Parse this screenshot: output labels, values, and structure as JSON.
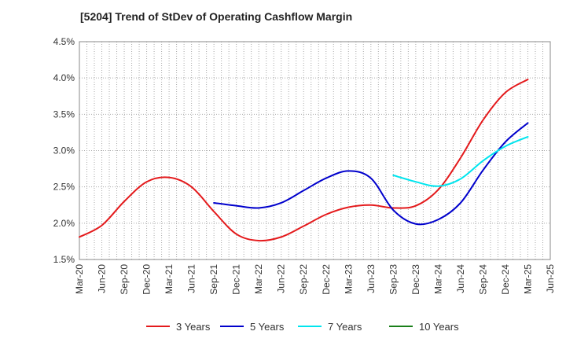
{
  "chart_data": {
    "type": "line",
    "title": "[5204]  Trend of StDev of Operating Cashflow Margin",
    "xlabel": "",
    "ylabel": "",
    "ylim": [
      1.5,
      4.5
    ],
    "yticks": [
      "1.5%",
      "2.0%",
      "2.5%",
      "3.0%",
      "3.5%",
      "4.0%",
      "4.5%"
    ],
    "categories": [
      "Mar-20",
      "Jun-20",
      "Sep-20",
      "Dec-20",
      "Mar-21",
      "Jun-21",
      "Sep-21",
      "Dec-21",
      "Mar-22",
      "Jun-22",
      "Sep-22",
      "Dec-22",
      "Mar-23",
      "Jun-23",
      "Sep-23",
      "Dec-23",
      "Mar-24",
      "Jun-24",
      "Sep-24",
      "Dec-24",
      "Mar-25",
      "Jun-25"
    ],
    "grid": true,
    "legend_position": "bottom",
    "series": [
      {
        "name": "3 Years",
        "color": "#e41a1c",
        "values": [
          1.81,
          1.97,
          2.3,
          2.57,
          2.63,
          2.5,
          2.16,
          1.85,
          1.76,
          1.81,
          1.96,
          2.12,
          2.22,
          2.25,
          2.21,
          2.24,
          2.46,
          2.9,
          3.42,
          3.8,
          3.98,
          null
        ]
      },
      {
        "name": "5 Years",
        "color": "#0000cc",
        "values": [
          null,
          null,
          null,
          null,
          null,
          null,
          2.28,
          2.24,
          2.21,
          2.28,
          2.45,
          2.62,
          2.72,
          2.62,
          2.18,
          1.99,
          2.05,
          2.28,
          2.73,
          3.12,
          3.38,
          null
        ]
      },
      {
        "name": "7 Years",
        "color": "#00e5ee",
        "values": [
          null,
          null,
          null,
          null,
          null,
          null,
          null,
          null,
          null,
          null,
          null,
          null,
          null,
          null,
          2.66,
          2.57,
          2.51,
          2.61,
          2.86,
          3.06,
          3.19,
          null
        ]
      },
      {
        "name": "10 Years",
        "color": "#1a7f1a",
        "values": [
          null,
          null,
          null,
          null,
          null,
          null,
          null,
          null,
          null,
          null,
          null,
          null,
          null,
          null,
          null,
          null,
          null,
          null,
          null,
          null,
          null,
          null
        ]
      }
    ]
  }
}
